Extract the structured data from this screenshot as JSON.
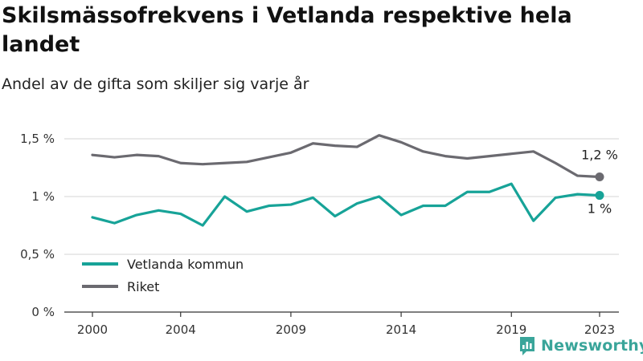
{
  "title": "Skilsmässofrekvens i Vetlanda respektive hela landet",
  "subtitle": "Andel av de gifta som skiljer sig varje år",
  "brand": "Newsworthy",
  "chart_data": {
    "type": "line",
    "title": "Skilsmässofrekvens i Vetlanda respektive hela landet",
    "subtitle": "Andel av de gifta som skiljer sig varje år",
    "xlabel": "",
    "ylabel": "",
    "x": [
      2000,
      2001,
      2002,
      2003,
      2004,
      2005,
      2006,
      2007,
      2008,
      2009,
      2010,
      2011,
      2012,
      2013,
      2014,
      2015,
      2016,
      2017,
      2018,
      2019,
      2020,
      2021,
      2022,
      2023
    ],
    "xlim": [
      2000,
      2023
    ],
    "xticks": [
      {
        "value": 2000,
        "label": "2000"
      },
      {
        "value": 2004,
        "label": "2004"
      },
      {
        "value": 2009,
        "label": "2009"
      },
      {
        "value": 2014,
        "label": "2014"
      },
      {
        "value": 2019,
        "label": "2019"
      },
      {
        "value": 2023,
        "label": "2023"
      }
    ],
    "ylim": [
      0,
      1.5
    ],
    "yticks": [
      {
        "value": 0,
        "label": "0 %"
      },
      {
        "value": 0.5,
        "label": "0,5 %"
      },
      {
        "value": 1,
        "label": "1 %"
      },
      {
        "value": 1.5,
        "label": "1,5 %"
      }
    ],
    "grid": true,
    "legend_position": "bottom-left",
    "series": [
      {
        "name": "Vetlanda kommun",
        "color": "#17a398",
        "end_label": "1 %",
        "values": [
          0.82,
          0.77,
          0.84,
          0.88,
          0.85,
          0.75,
          1.0,
          0.87,
          0.92,
          0.93,
          0.99,
          0.83,
          0.94,
          1.0,
          0.84,
          0.92,
          0.92,
          1.04,
          1.04,
          1.11,
          0.79,
          0.99,
          1.02,
          1.01
        ]
      },
      {
        "name": "Riket",
        "color": "#6b6a70",
        "end_label": "1,2 %",
        "values": [
          1.36,
          1.34,
          1.36,
          1.35,
          1.29,
          1.28,
          1.29,
          1.3,
          1.34,
          1.38,
          1.46,
          1.44,
          1.43,
          1.53,
          1.47,
          1.39,
          1.35,
          1.33,
          1.35,
          1.37,
          1.39,
          1.29,
          1.18,
          1.17
        ]
      }
    ]
  }
}
